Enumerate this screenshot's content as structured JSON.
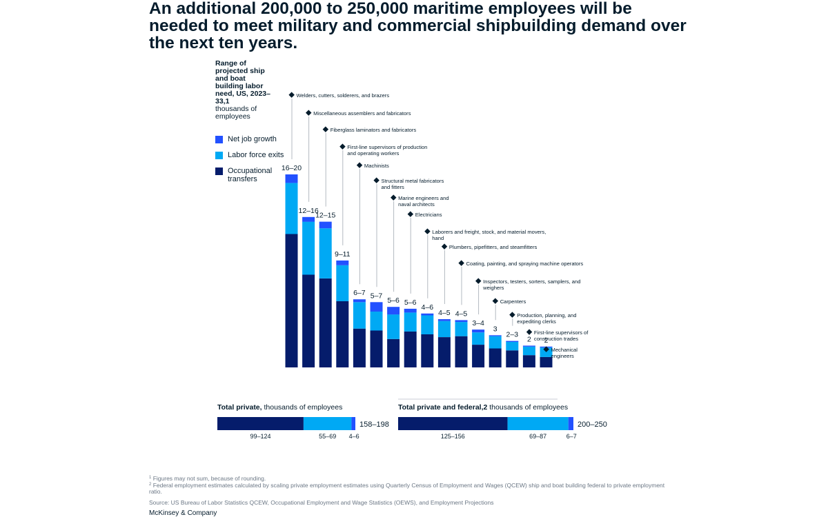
{
  "title": "An additional 200,000 to 250,000 maritime employees will be needed to meet military and commercial shipbuilding demand over the next ten years.",
  "subtitle": {
    "bold": "Range of projected ship and boat building labor need, US, 2023–33,1",
    "normal": "thousands of employees"
  },
  "legend": [
    {
      "label": "Net job growth",
      "color": "#2251ff"
    },
    {
      "label": "Labor force exits",
      "color": "#00a9f4"
    },
    {
      "label": "Occupational transfers",
      "color": "#051c6b"
    }
  ],
  "chart_data": {
    "type": "bar",
    "stacked": true,
    "categories": [
      "Welders, cutters, solderers, and brazers",
      "Miscellaneous assemblers and fabricators",
      "Fiberglass laminators and fabricators",
      "First-line supervisors of production and operating workers",
      "Machinists",
      "Structural metal fabricators and fitters",
      "Marine engineers and naval architects",
      "Electricians",
      "Laborers and freight, stock, and material movers, hand",
      "Plumbers, pipefitters, and steamfitters",
      "Coating, painting, and spraying machine operators",
      "Inspectors, testers, sorters, samplers, and weighers",
      "Carpenters",
      "Production, planning, and expediting clerks",
      "First-line supervisors of construction trades",
      "Mechanical engineers"
    ],
    "range_labels": [
      "16–20",
      "12–16",
      "12–15",
      "9–11",
      "6–7",
      "5–7",
      "5–6",
      "5–6",
      "4–6",
      "4–5",
      "4–5",
      "3–4",
      "3",
      "2–3",
      "2",
      "2"
    ],
    "series": [
      {
        "name": "Occupational transfers",
        "color": "#051c6b",
        "values": [
          14.1,
          9.8,
          9.4,
          7.0,
          4.1,
          3.9,
          3.0,
          3.8,
          3.5,
          3.2,
          3.3,
          2.4,
          2.0,
          1.8,
          1.3,
          1.1
        ]
      },
      {
        "name": "Labor force exits",
        "color": "#00a9f4",
        "values": [
          5.4,
          5.6,
          5.3,
          3.8,
          2.8,
          2.0,
          2.6,
          2.0,
          2.0,
          1.7,
          1.5,
          1.3,
          1.3,
          0.9,
          0.9,
          1.0
        ]
      },
      {
        "name": "Net job growth",
        "color": "#2251ff",
        "values": [
          0.9,
          0.5,
          0.7,
          0.5,
          0.3,
          1.0,
          0.8,
          0.4,
          0.2,
          0.2,
          0.2,
          0.3,
          0.1,
          0.1,
          0.1,
          0.1
        ]
      }
    ],
    "ylim": [
      0,
      20.4
    ]
  },
  "totals": [
    {
      "label_bold": "Total private,",
      "label_rest": " thousands of employees",
      "range": "158–198",
      "segments": [
        {
          "name": "Occupational transfers",
          "value": 111.5,
          "label": "99–124",
          "color": "#051c6b"
        },
        {
          "name": "Labor force exits",
          "value": 62,
          "label": "55–69",
          "color": "#00a9f4"
        },
        {
          "name": "Net job growth",
          "value": 5,
          "label": "4–6",
          "color": "#2251ff"
        }
      ]
    },
    {
      "label_bold": "Total private and federal,2",
      "label_rest": " thousands of employees",
      "range": "200–250",
      "segments": [
        {
          "name": "Occupational transfers",
          "value": 140.5,
          "label": "125–156",
          "color": "#051c6b"
        },
        {
          "name": "Labor force exits",
          "value": 78,
          "label": "69–87",
          "color": "#00a9f4"
        },
        {
          "name": "Net job growth",
          "value": 6.5,
          "label": "6–7",
          "color": "#2251ff"
        }
      ]
    }
  ],
  "footnotes": {
    "note1_mark": "1",
    "note1": "Figures may not sum, because of rounding.",
    "note2_mark": "2",
    "note2": "Federal employment estimates calculated by scaling private employment estimates using Quarterly Census of Employment and Wages (QCEW) ship and boat building federal to private employment ratio.",
    "source": "Source: US Bureau of Labor Statistics QCEW, Occupational Employment and Wage Statistics (OEWS), and Employment Projections"
  },
  "brand": "McKinsey & Company"
}
